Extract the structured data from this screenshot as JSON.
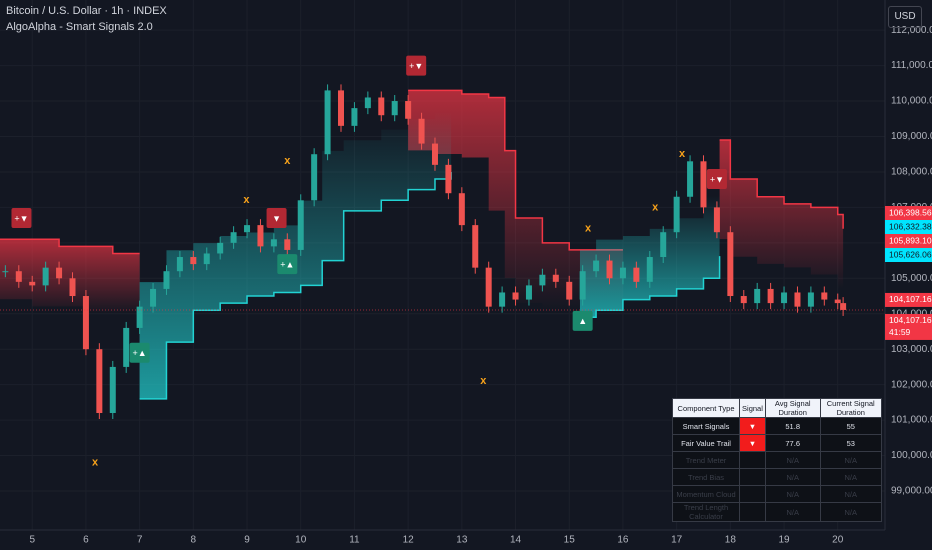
{
  "header": {
    "symbol": "Bitcoin / U.S. Dollar · 1h · INDEX",
    "indicator": "AlgoAlpha - Smart Signals 2.0",
    "currency": "USD"
  },
  "chart_data": {
    "type": "candles",
    "xlim": [
      4.4,
      20.88
    ],
    "ylim": [
      97900,
      112850
    ],
    "xticks": [
      5,
      6,
      7,
      8,
      9,
      10,
      11,
      12,
      13,
      14,
      15,
      16,
      17,
      18,
      19,
      20
    ],
    "yticks": [
      {
        "value": 99000,
        "label": "99,000.00"
      },
      {
        "value": 100000,
        "label": "100,000.00"
      },
      {
        "value": 101000,
        "label": "101,000.00"
      },
      {
        "value": 102000,
        "label": "102,000.00"
      },
      {
        "value": 103000,
        "label": "103,000.00"
      },
      {
        "value": 104000,
        "label": "104,000.00"
      },
      {
        "value": 105000,
        "label": "105,000.00"
      },
      {
        "value": 106000,
        "label": "106,000.00"
      },
      {
        "value": 107000,
        "label": "107,000.00"
      },
      {
        "value": 108000,
        "label": "108,000.00"
      },
      {
        "value": 109000,
        "label": "109,000.00"
      },
      {
        "value": 110000,
        "label": "110,000.00"
      },
      {
        "value": 111000,
        "label": "111,000.00"
      },
      {
        "value": 112000,
        "label": "112,000.00"
      }
    ],
    "grid": true,
    "up_color": "#26a69a",
    "down_color": "#ef5350",
    "x": [
      4.5,
      4.75,
      5,
      5.25,
      5.5,
      5.75,
      6,
      6.25,
      6.5,
      6.75,
      7,
      7.25,
      7.5,
      7.75,
      8,
      8.25,
      8.5,
      8.75,
      9,
      9.25,
      9.5,
      9.75,
      10,
      10.25,
      10.5,
      10.75,
      11,
      11.25,
      11.5,
      11.75,
      12,
      12.25,
      12.5,
      12.75,
      13,
      13.25,
      13.5,
      13.75,
      14,
      14.25,
      14.5,
      14.75,
      15,
      15.25,
      15.5,
      15.75,
      16,
      16.25,
      16.5,
      16.75,
      17,
      17.25,
      17.5,
      17.75,
      18,
      18.25,
      18.5,
      18.75,
      19,
      19.25,
      19.5,
      19.75,
      20,
      20.1
    ],
    "values": [
      105200,
      104900,
      104800,
      105300,
      105000,
      104500,
      103000,
      101200,
      102500,
      103600,
      104200,
      104700,
      105200,
      105600,
      105400,
      105700,
      106000,
      106300,
      106500,
      105900,
      106100,
      105800,
      107200,
      108500,
      110300,
      109300,
      109800,
      110100,
      109600,
      110000,
      109500,
      108800,
      108200,
      107400,
      106500,
      105300,
      104200,
      104600,
      104400,
      104800,
      105100,
      104900,
      104400,
      105200,
      105500,
      105000,
      105300,
      104900,
      105600,
      106300,
      107300,
      108300,
      107000,
      106300,
      104500,
      104300,
      104700,
      104300,
      104600,
      104200,
      104600,
      104400,
      104300,
      104107.16
    ],
    "trails": [
      {
        "name": "bear",
        "color": "#f23645",
        "x": [
          4.4,
          5,
          5.5,
          6,
          6.5,
          7
        ],
        "values": [
          106100,
          106100,
          105900,
          105900,
          105700,
          105700
        ]
      },
      {
        "name": "bear",
        "color": "#f23645",
        "x": [
          12,
          12.5,
          13,
          13.5,
          13.8,
          14,
          14.5,
          15,
          15.5,
          16
        ],
        "values": [
          110300,
          110300,
          110200,
          110100,
          108600,
          106700,
          106000,
          105800,
          105800,
          105800
        ]
      },
      {
        "name": "bear",
        "color": "#f23645",
        "x": [
          17.8,
          18,
          18.5,
          19,
          19.5,
          20,
          20.1
        ],
        "values": [
          108900,
          107800,
          107300,
          107100,
          107000,
          106800,
          106398.56
        ]
      },
      {
        "name": "bull",
        "color": "#22d3d3",
        "x": [
          7,
          7.5,
          8,
          8.5,
          9,
          9.5,
          10,
          10.4,
          10.8,
          11.5,
          12,
          12.5,
          12.8
        ],
        "values": [
          101600,
          103200,
          104100,
          104300,
          104500,
          104600,
          104800,
          105500,
          106900,
          107200,
          107500,
          107800,
          108000
        ]
      },
      {
        "name": "bull",
        "color": "#22d3d3",
        "x": [
          15.2,
          15.5,
          16,
          16.5,
          17,
          17.5,
          17.8
        ],
        "values": [
          103900,
          104100,
          104400,
          104500,
          104700,
          105000,
          105626.06
        ]
      }
    ],
    "signals": [
      {
        "label": "+▼",
        "x": 4.8,
        "y": 106700,
        "color": "#b22833"
      },
      {
        "label": "▼",
        "x": 9.55,
        "y": 106700,
        "color": "#b22833"
      },
      {
        "label": "+▼",
        "x": 12.15,
        "y": 111000,
        "color": "#b22833"
      },
      {
        "label": "+▼",
        "x": 17.75,
        "y": 107800,
        "color": "#b22833"
      },
      {
        "label": "+▲",
        "x": 7,
        "y": 102900,
        "color": "#1b8a6e"
      },
      {
        "label": "+▲",
        "x": 9.75,
        "y": 105400,
        "color": "#1b8a6e"
      },
      {
        "label": "▲",
        "x": 15.25,
        "y": 103800,
        "color": "#1b8a6e"
      }
    ],
    "crosses": {
      "label": "x",
      "color": "#f7a21b",
      "x": [
        6.17,
        9.75,
        8.99,
        13.4,
        15.35,
        16.6,
        17.1
      ],
      "values": [
        99800,
        108300,
        107200,
        102100,
        106400,
        107000,
        108500
      ]
    },
    "price_tags": [
      {
        "value": 106398.56,
        "label": "106,398.56",
        "color": "#f23645"
      },
      {
        "value": 106332.38,
        "label": "106,332.38",
        "color": "#00e5ff"
      },
      {
        "value": 105893.1,
        "label": "105,893.10",
        "color": "#f23645"
      },
      {
        "value": 105626.06,
        "label": "105,626.06",
        "color": "#00e5ff"
      },
      {
        "value": 104107.16,
        "label": "104,107.16",
        "color": "#f23645"
      }
    ],
    "last_price": {
      "value": 104107.16,
      "label": "104,107.16",
      "countdown": "41:59",
      "color": "#f23645"
    }
  },
  "table": {
    "header": [
      "Component Type",
      "Signal",
      "Avg Signal Duration",
      "Current Signal Duration"
    ],
    "rows": [
      [
        "Smart Signals",
        "▼",
        "51.8",
        "55"
      ],
      [
        "Fair Value Trail",
        "▼",
        "77.6",
        "53"
      ],
      [
        "Trend Meter",
        "",
        "N/A",
        "N/A"
      ],
      [
        "Trend Bias",
        "",
        "N/A",
        "N/A"
      ],
      [
        "Momentum Cloud",
        "",
        "N/A",
        "N/A"
      ],
      [
        "Trend Length Calculator",
        "",
        "N/A",
        "N/A"
      ]
    ]
  }
}
